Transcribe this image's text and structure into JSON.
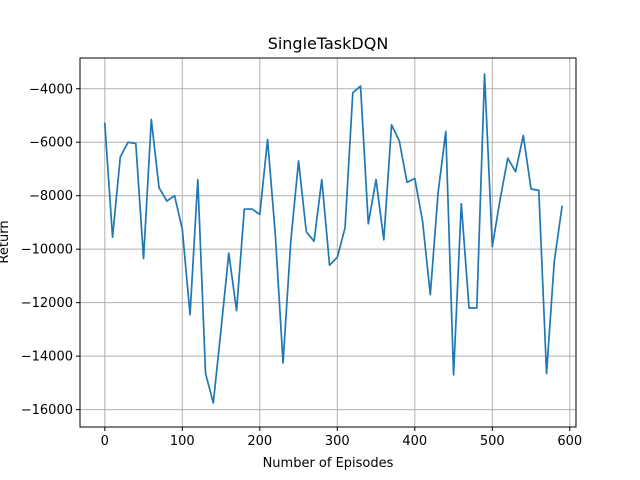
{
  "chart_data": {
    "type": "line",
    "title": "SingleTaskDQN",
    "xlabel": "Number of Episodes",
    "ylabel": "Return",
    "xlim": [
      -32,
      608
    ],
    "ylim": [
      -16650,
      -2850
    ],
    "xticks": [
      0,
      100,
      200,
      300,
      400,
      500,
      600
    ],
    "yticks": [
      -16000,
      -14000,
      -12000,
      -10000,
      -8000,
      -6000,
      -4000
    ],
    "xtick_labels": [
      "0",
      "100",
      "200",
      "300",
      "400",
      "500",
      "600"
    ],
    "ytick_labels": [
      "−16000",
      "−14000",
      "−12000",
      "−10000",
      "−8000",
      "−6000",
      "−4000"
    ],
    "grid": true,
    "series": [
      {
        "color": "#1f77b4",
        "x": [
          0,
          10,
          20,
          30,
          40,
          50,
          60,
          70,
          80,
          90,
          100,
          110,
          120,
          130,
          140,
          150,
          160,
          170,
          180,
          190,
          200,
          210,
          220,
          230,
          240,
          250,
          260,
          270,
          280,
          290,
          300,
          310,
          320,
          330,
          340,
          350,
          360,
          370,
          380,
          390,
          400,
          410,
          420,
          430,
          440,
          450,
          460,
          470,
          480,
          490,
          500,
          510,
          520,
          530,
          540,
          550,
          560,
          570,
          580,
          590
        ],
        "y": [
          -5300,
          -9550,
          -6550,
          -6000,
          -6050,
          -10350,
          -5150,
          -7700,
          -8200,
          -8000,
          -9250,
          -12450,
          -7400,
          -14650,
          -15750,
          -13000,
          -10150,
          -12300,
          -8500,
          -8500,
          -8700,
          -5900,
          -9450,
          -14250,
          -9700,
          -6700,
          -9350,
          -9700,
          -7400,
          -10600,
          -10300,
          -9200,
          -4150,
          -3900,
          -9050,
          -7400,
          -9650,
          -5350,
          -5950,
          -7500,
          -7350,
          -8950,
          -11700,
          -7900,
          -5600,
          -14700,
          -8300,
          -12200,
          -12200,
          -3450,
          -9900,
          -8150,
          -6600,
          -7100,
          -5750,
          -7750,
          -7800,
          -14650,
          -10450,
          -8400
        ]
      }
    ]
  }
}
